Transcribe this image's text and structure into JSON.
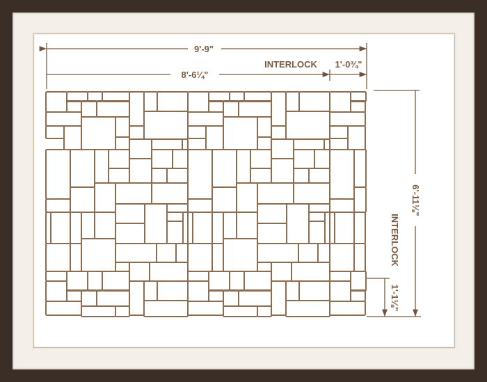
{
  "colors": {
    "frame": "#3b2e26",
    "mat": "#f4efe9",
    "line": "#8d6c50"
  },
  "dimensions": {
    "overall_width": "9'-9\"",
    "pattern_width": "8'-6¼\"",
    "interlock_width_label": "INTERLOCK",
    "interlock_width": "1'-0¾\"",
    "overall_height": "6'-11⅛\"",
    "interlock_height_label": "INTERLOCK",
    "interlock_height": "1'-1⅛\""
  }
}
